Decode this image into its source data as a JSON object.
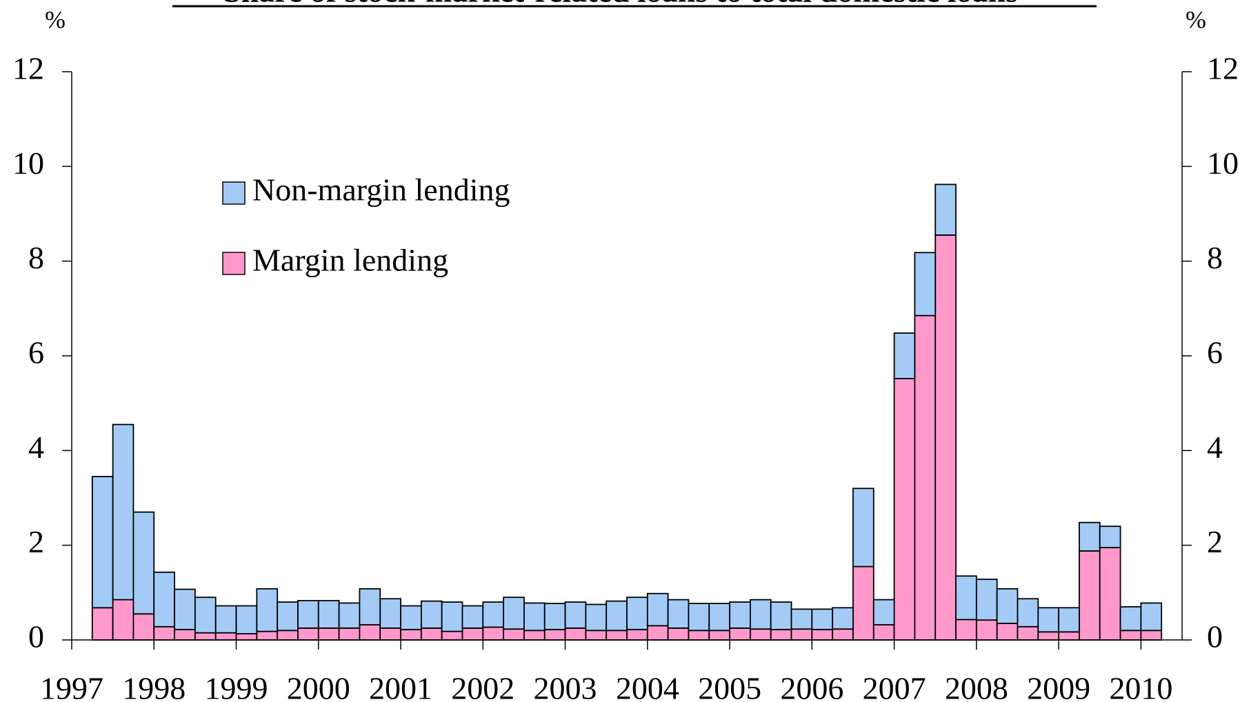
{
  "chart_data": {
    "type": "stacked_bar",
    "title": "Share of stock-market-related loans to total domestic loans",
    "y_label_left": "%",
    "y_label_right": "%",
    "xlim": [
      1997,
      2010.5
    ],
    "xticks": [
      1997,
      1998,
      1999,
      2000,
      2001,
      2002,
      2003,
      2004,
      2005,
      2006,
      2007,
      2008,
      2009,
      2010
    ],
    "ylim": [
      0,
      12
    ],
    "yticks": [
      0,
      2,
      4,
      6,
      8,
      10,
      12
    ],
    "y2lim": [
      0,
      12
    ],
    "y2ticks": [
      0,
      2,
      4,
      6,
      8,
      10,
      12
    ],
    "categories": [
      null,
      null,
      null,
      null,
      null,
      null,
      null,
      null,
      null,
      null,
      null,
      null,
      null,
      null,
      null,
      null,
      null,
      null,
      null,
      null,
      null,
      null,
      null,
      null,
      null,
      null,
      null,
      null,
      null,
      null,
      null,
      null,
      null,
      null,
      null,
      null,
      null,
      null,
      null,
      null,
      null,
      null,
      null,
      null,
      null,
      null,
      null,
      null,
      null,
      null,
      null,
      null
    ],
    "series": [
      {
        "name": "Margin lending",
        "color": "#ff99cc",
        "values": [
          0.68,
          0.85,
          0.55,
          0.28,
          0.22,
          0.15,
          0.15,
          0.13,
          0.18,
          0.2,
          0.25,
          0.25,
          0.25,
          0.32,
          0.25,
          0.22,
          0.25,
          0.18,
          0.25,
          0.27,
          0.23,
          0.2,
          0.22,
          0.25,
          0.2,
          0.2,
          0.22,
          0.3,
          0.25,
          0.2,
          0.2,
          0.25,
          0.23,
          0.22,
          0.23,
          0.22,
          0.23,
          1.55,
          0.32,
          5.52,
          6.85,
          8.55,
          0.43,
          0.42,
          0.35,
          0.28,
          0.17,
          0.17,
          1.88,
          1.95,
          0.2,
          0.2
        ]
      },
      {
        "name": "Non-margin lending",
        "color": "#a3cbf5",
        "values": [
          2.77,
          3.7,
          2.15,
          1.15,
          0.85,
          0.75,
          0.57,
          0.59,
          0.9,
          0.6,
          0.58,
          0.58,
          0.53,
          0.76,
          0.62,
          0.5,
          0.57,
          0.62,
          0.47,
          0.53,
          0.67,
          0.58,
          0.55,
          0.55,
          0.55,
          0.62,
          0.68,
          0.68,
          0.6,
          0.57,
          0.57,
          0.55,
          0.62,
          0.58,
          0.42,
          0.43,
          0.45,
          1.65,
          0.53,
          0.96,
          1.33,
          1.07,
          0.92,
          0.86,
          0.73,
          0.59,
          0.51,
          0.51,
          0.6,
          0.45,
          0.5,
          0.58
        ]
      }
    ]
  }
}
